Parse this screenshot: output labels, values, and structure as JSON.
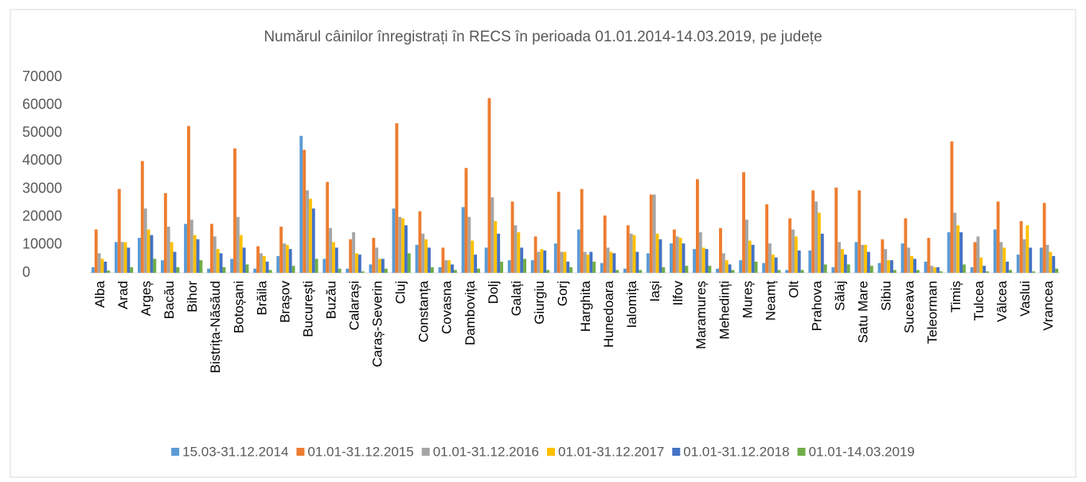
{
  "chart_data": {
    "type": "bar",
    "title": "Numărul câinilor înregistrați  în RECS în perioada 01.01.2014-14.03.2019, pe județe",
    "categories": [
      "Alba",
      "Arad",
      "Argeș",
      "Bacău",
      "Bihor",
      "Bistrița-Năsăud",
      "Botoșani",
      "Brăila",
      "Brașov",
      "București",
      "Buzău",
      "Calarași",
      "Caraș-Severin",
      "Cluj",
      "Constanța",
      "Covasna",
      "Dambovița",
      "Dolj",
      "Galați",
      "Giurgiu",
      "Gorj",
      "Harghita",
      "Hunedoara",
      "Ialomița",
      "Iași",
      "Ilfov",
      "Maramureș",
      "Mehedinți",
      "Mureș",
      "Neamț",
      "Olt",
      "Prahova",
      "Sălaj",
      "Satu Mare",
      "Sibiu",
      "Suceava",
      "Teleorman",
      "Timiș",
      "Tulcea",
      "Vâlcea",
      "Vaslui",
      "Vrancea"
    ],
    "series": [
      {
        "name": "15.03-31.12.2014",
        "color": "#5b9bd5",
        "values": [
          2000,
          11000,
          12500,
          4500,
          17500,
          1500,
          5000,
          1500,
          6000,
          49000,
          5000,
          1500,
          3000,
          23000,
          10000,
          2000,
          23500,
          9000,
          4500,
          4500,
          10500,
          15500,
          3500,
          1500,
          7000,
          10500,
          8500,
          1500,
          4500,
          3500,
          1000,
          8000,
          2000,
          11000,
          3500,
          10500,
          4000,
          14500,
          2000,
          15500,
          6500,
          9000
        ]
      },
      {
        "name": "01.01-31.12.2015",
        "color": "#ed7d31",
        "values": [
          15500,
          30000,
          40000,
          28500,
          52500,
          17500,
          44500,
          9500,
          16500,
          44000,
          32500,
          12000,
          12500,
          53500,
          22000,
          9000,
          37500,
          62500,
          25500,
          13000,
          29000,
          30000,
          20500,
          17000,
          28000,
          15500,
          33500,
          16000,
          36000,
          24500,
          19500,
          29500,
          30500,
          29500,
          12000,
          19500,
          12500,
          47000,
          11000,
          25500,
          18500,
          25000
        ]
      },
      {
        "name": "01.01-31.12.2016",
        "color": "#a5a5a5",
        "values": [
          7000,
          11000,
          23000,
          16500,
          19000,
          13000,
          20000,
          7000,
          10500,
          29500,
          16000,
          14500,
          9000,
          20000,
          14000,
          4500,
          20000,
          27000,
          17000,
          7500,
          7500,
          7500,
          9000,
          14000,
          28000,
          13000,
          14500,
          7000,
          19000,
          10500,
          15500,
          25500,
          11000,
          10000,
          8500,
          9000,
          2500,
          21500,
          13000,
          11000,
          12000,
          10000
        ]
      },
      {
        "name": "01.01-31.12.2017",
        "color": "#ffc000",
        "values": [
          5000,
          11000,
          15500,
          11000,
          13500,
          8500,
          13500,
          6000,
          10000,
          26500,
          11000,
          7000,
          5000,
          19500,
          12000,
          4500,
          11500,
          18500,
          14500,
          8500,
          7500,
          6500,
          7500,
          13500,
          14000,
          12500,
          9000,
          4500,
          11500,
          6500,
          13000,
          21500,
          8500,
          10000,
          4500,
          6000,
          2000,
          17000,
          5500,
          9000,
          17000,
          7500
        ]
      },
      {
        "name": "01.01-31.12.2018",
        "color": "#4472c4",
        "values": [
          4000,
          9000,
          13500,
          7500,
          12000,
          7000,
          9000,
          4000,
          8500,
          23000,
          9000,
          6500,
          5000,
          17000,
          9000,
          3000,
          6500,
          14000,
          9000,
          8000,
          4000,
          7500,
          7000,
          7500,
          12000,
          10500,
          8500,
          3000,
          10000,
          5500,
          8000,
          14000,
          6500,
          7500,
          4500,
          5000,
          2000,
          14500,
          2500,
          4000,
          9000,
          6000
        ]
      },
      {
        "name": "01.01-14.03.2019",
        "color": "#70ad47",
        "values": [
          800,
          2000,
          5000,
          2000,
          4500,
          2000,
          3000,
          1000,
          2500,
          5000,
          1500,
          500,
          1500,
          7000,
          2000,
          1000,
          1500,
          4000,
          5000,
          1000,
          2000,
          4000,
          1000,
          1000,
          2000,
          2500,
          2500,
          1000,
          4000,
          1000,
          1000,
          3000,
          3000,
          2500,
          1000,
          1000,
          500,
          3000,
          500,
          1000,
          500,
          1500
        ]
      }
    ],
    "ylim": [
      0,
      70000
    ],
    "yticks": [
      0,
      10000,
      20000,
      30000,
      40000,
      50000,
      60000,
      70000
    ]
  }
}
